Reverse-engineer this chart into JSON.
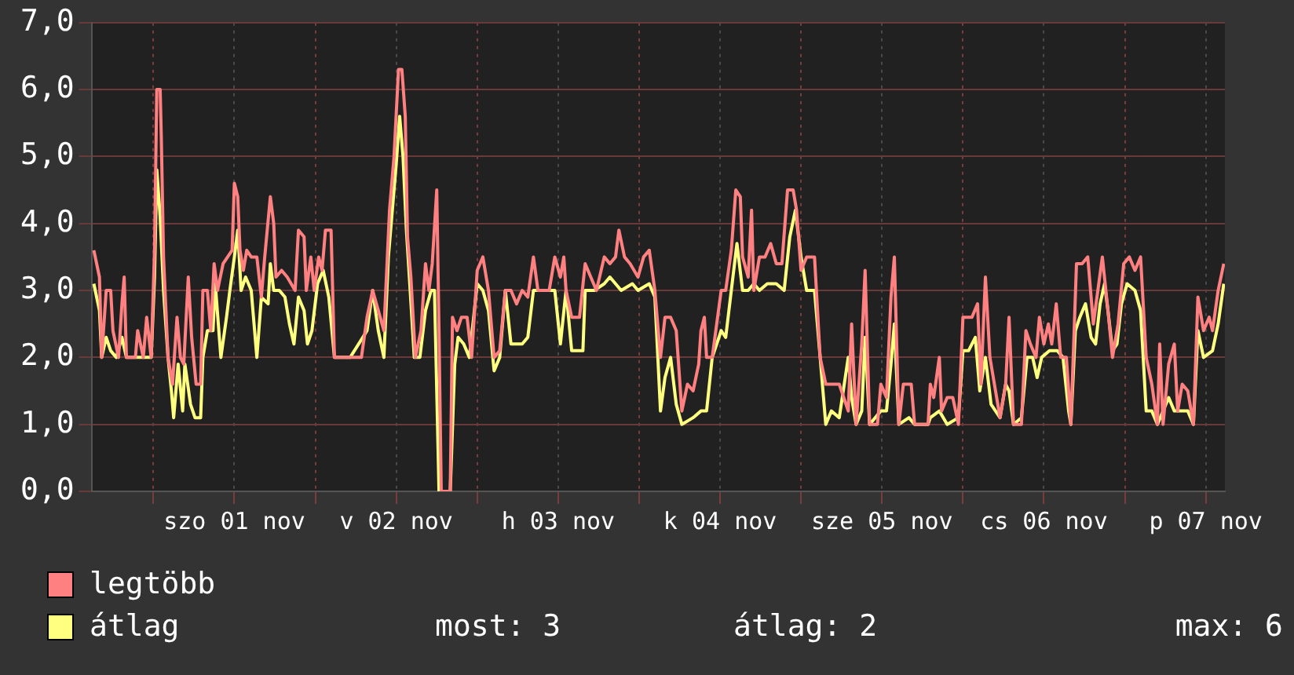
{
  "chart_data": {
    "type": "line",
    "xlim": [
      "--10-31T14:50",
      "--11-07T14:50"
    ],
    "xticks": [
      {
        "value": "--11-01T00:00",
        "label": null
      },
      {
        "value": "--11-01T12:00",
        "label": "szo 01 nov"
      },
      {
        "value": "--11-02T00:00",
        "label": null
      },
      {
        "value": "--11-02T12:00",
        "label": "v 02 nov"
      },
      {
        "value": "--11-03T00:00",
        "label": null
      },
      {
        "value": "--11-03T12:00",
        "label": "h 03 nov"
      },
      {
        "value": "--11-04T00:00",
        "label": null
      },
      {
        "value": "--11-04T12:00",
        "label": "k 04 nov"
      },
      {
        "value": "--11-05T00:00",
        "label": null
      },
      {
        "value": "--11-05T12:00",
        "label": "sze 05 nov"
      },
      {
        "value": "--11-06T00:00",
        "label": null
      },
      {
        "value": "--11-06T12:00",
        "label": "cs 06 nov"
      },
      {
        "value": "--11-07T00:00",
        "label": null
      },
      {
        "value": "--11-07T12:00",
        "label": "p 07 nov"
      }
    ],
    "ylim": [
      0,
      7
    ],
    "yticks": [
      {
        "value": 0,
        "label": "0,0"
      },
      {
        "value": 1,
        "label": "1,0"
      },
      {
        "value": 2,
        "label": "2,0"
      },
      {
        "value": 3,
        "label": "3,0"
      },
      {
        "value": 4,
        "label": "4,0"
      },
      {
        "value": 5,
        "label": "5,0"
      },
      {
        "value": 6,
        "label": "6,0"
      },
      {
        "value": 7,
        "label": "7,0"
      }
    ],
    "grid": true,
    "legend": "bottom left",
    "marker": "none",
    "line_style": "solid",
    "annotations": [
      "most: 3",
      "átlag: 2",
      "max: 6"
    ],
    "series": [
      {
        "name": "legtöbb",
        "color": "#ff8080",
        "x": [
          "--10-31T15:10",
          "--10-31T16:00",
          "--10-31T16:20",
          "--10-31T17:00",
          "--10-31T17:40",
          "--10-31T18:00",
          "--10-31T18:50",
          "--10-31T19:20",
          "--10-31T19:40",
          "--10-31T20:00",
          "--10-31T21:20",
          "--10-31T21:40",
          "--10-31T22:30",
          "--10-31T23:00",
          "--10-31T23:40",
          "--11-01T00:10",
          "--11-01T00:30",
          "--11-01T01:00",
          "--11-01T01:10",
          "--11-01T01:30",
          "--11-01T02:10",
          "--11-01T02:50",
          "--11-01T03:30",
          "--11-01T04:00",
          "--11-01T04:30",
          "--11-01T05:10",
          "--11-01T05:40",
          "--11-01T06:20",
          "--11-01T07:00",
          "--11-01T07:20",
          "--11-01T08:00",
          "--11-01T08:30",
          "--11-01T09:00",
          "--11-01T09:30",
          "--11-01T10:20",
          "--11-01T11:00",
          "--11-01T11:40",
          "--11-01T12:00",
          "--11-01T12:30",
          "--11-01T12:50",
          "--11-01T13:20",
          "--11-01T13:50",
          "--11-01T14:30",
          "--11-01T15:20",
          "--11-01T16:00",
          "--11-01T16:30",
          "--11-01T17:20",
          "--11-01T17:50",
          "--11-01T18:10",
          "--11-01T19:00",
          "--11-01T19:50",
          "--11-01T21:00",
          "--11-01T21:30",
          "--11-01T22:20",
          "--11-01T22:40",
          "--11-01T23:20",
          "--11-01T23:50",
          "--11-02T00:30",
          "--11-02T01:00",
          "--11-02T01:30",
          "--11-02T02:20",
          "--11-02T02:50",
          "--11-02T04:20",
          "--11-02T06:50",
          "--11-02T07:40",
          "--11-02T08:30",
          "--11-02T09:20",
          "--11-02T10:10",
          "--11-02T11:00",
          "--11-02T11:40",
          "--11-02T12:20",
          "--11-02T12:50",
          "--11-02T13:20",
          "--11-02T13:40",
          "--11-02T14:10",
          "--11-02T14:50",
          "--11-02T15:40",
          "--11-02T16:20",
          "--11-02T16:50",
          "--11-02T17:20",
          "--11-02T18:00",
          "--11-02T18:20",
          "--11-02T18:40",
          "--11-02T20:00",
          "--11-02T20:20",
          "--11-02T21:00",
          "--11-02T21:40",
          "--11-02T22:30",
          "--11-02T23:10",
          "--11-03T00:00",
          "--11-03T00:50",
          "--11-03T01:40",
          "--11-03T02:30",
          "--11-03T03:20",
          "--11-03T04:10",
          "--11-03T05:00",
          "--11-03T05:50",
          "--11-03T06:40",
          "--11-03T07:30",
          "--11-03T08:20",
          "--11-03T09:00",
          "--11-03T10:40",
          "--11-03T11:30",
          "--11-03T12:20",
          "--11-03T12:50",
          "--11-03T13:10",
          "--11-03T14:00",
          "--11-03T15:10",
          "--11-03T16:00",
          "--11-03T16:50",
          "--11-03T17:40",
          "--11-03T18:50",
          "--11-03T19:40",
          "--11-03T20:30",
          "--11-03T21:00",
          "--11-03T21:50",
          "--11-03T22:40",
          "--11-03T23:50",
          "--11-04T00:40",
          "--11-04T01:30",
          "--11-04T02:20",
          "--11-04T03:10",
          "--11-04T03:50",
          "--11-04T04:40",
          "--11-04T05:30",
          "--11-04T06:20",
          "--11-04T07:10",
          "--11-04T08:00",
          "--11-04T08:50",
          "--11-04T09:10",
          "--11-04T09:40",
          "--11-04T10:00",
          "--11-04T10:50",
          "--11-04T12:10",
          "--11-04T12:50",
          "--11-04T13:40",
          "--11-04T14:20",
          "--11-04T15:00",
          "--11-04T15:20",
          "--11-04T16:10",
          "--11-04T16:40",
          "--11-04T17:00",
          "--11-04T17:50",
          "--11-04T18:40",
          "--11-04T19:30",
          "--11-04T20:20",
          "--11-04T21:10",
          "--11-04T22:00",
          "--11-04T22:50",
          "--11-04T23:20",
          "--11-05T00:00",
          "--11-05T00:50",
          "--11-05T02:00",
          "--11-05T02:50",
          "--11-05T03:40",
          "--11-05T04:30",
          "--11-05T05:40",
          "--11-05T07:00",
          "--11-05T07:30",
          "--11-05T08:10",
          "--11-05T09:00",
          "--11-05T09:30",
          "--11-05T10:10",
          "--11-05T11:20",
          "--11-05T11:50",
          "--11-05T12:40",
          "--11-05T13:20",
          "--11-05T13:50",
          "--11-05T14:30",
          "--11-05T15:10",
          "--11-05T16:20",
          "--11-05T16:50",
          "--11-05T18:50",
          "--11-05T19:10",
          "--11-05T19:40",
          "--11-05T20:30",
          "--11-05T20:50",
          "--11-05T21:40",
          "--11-05T22:30",
          "--11-05T23:20",
          "--11-06T00:00",
          "--11-06T00:30",
          "--11-06T01:20",
          "--11-06T02:10",
          "--11-06T02:40",
          "--11-06T03:20",
          "--11-06T04:00",
          "--11-06T04:40",
          "--11-06T05:30",
          "--11-06T06:20",
          "--11-06T06:50",
          "--11-06T07:30",
          "--11-06T08:40",
          "--11-06T09:20",
          "--11-06T10:00",
          "--11-06T10:50",
          "--11-06T11:20",
          "--11-06T12:00",
          "--11-06T12:40",
          "--11-06T13:10",
          "--11-06T13:50",
          "--11-06T14:30",
          "--11-06T15:20",
          "--11-06T16:00",
          "--11-06T16:50",
          "--11-06T17:40",
          "--11-06T18:30",
          "--11-06T19:20",
          "--11-06T20:00",
          "--11-06T20:40",
          "--11-06T21:30",
          "--11-06T22:10",
          "--11-06T23:00",
          "--11-06T23:50",
          "--11-07T00:40",
          "--11-07T01:30",
          "--11-07T02:20",
          "--11-07T03:10",
          "--11-07T04:00",
          "--11-07T04:50",
          "--11-07T05:10",
          "--11-07T05:40",
          "--11-07T06:30",
          "--11-07T07:20",
          "--11-07T07:50",
          "--11-07T08:30",
          "--11-07T09:20",
          "--11-07T10:10",
          "--11-07T10:50",
          "--11-07T11:40",
          "--11-07T12:30",
          "--11-07T13:00",
          "--11-07T13:50",
          "--11-07T14:40"
        ],
        "values": [
          3.6,
          3.2,
          2.0,
          3.0,
          3.0,
          2.4,
          2.0,
          2.8,
          3.2,
          2.0,
          2.0,
          2.4,
          2.0,
          2.6,
          2.0,
          3.6,
          6.0,
          6.0,
          5.3,
          3.5,
          2.0,
          1.6,
          2.6,
          2.0,
          1.9,
          3.2,
          2.3,
          1.6,
          1.6,
          3.0,
          3.0,
          2.4,
          3.4,
          3.0,
          3.4,
          3.5,
          3.6,
          4.6,
          4.4,
          3.6,
          3.3,
          3.6,
          3.5,
          3.5,
          2.9,
          3.5,
          4.4,
          4.0,
          3.2,
          3.3,
          3.2,
          3.0,
          3.9,
          3.8,
          3.0,
          3.5,
          3.0,
          3.5,
          3.3,
          3.9,
          3.9,
          2.0,
          2.0,
          2.0,
          2.6,
          3.0,
          2.7,
          2.4,
          4.2,
          5.0,
          6.3,
          6.3,
          5.6,
          3.8,
          3.2,
          2.0,
          2.4,
          3.4,
          3.0,
          3.4,
          4.5,
          2.4,
          0.0,
          0.0,
          2.6,
          2.4,
          2.6,
          2.6,
          2.0,
          3.3,
          3.5,
          3.0,
          2.0,
          2.1,
          3.0,
          3.0,
          2.8,
          3.0,
          2.9,
          3.5,
          3.0,
          3.0,
          3.5,
          3.2,
          3.5,
          3.0,
          2.6,
          2.6,
          3.4,
          3.2,
          3.0,
          3.5,
          3.4,
          3.5,
          3.9,
          3.5,
          3.4,
          3.2,
          3.5,
          3.6,
          3.0,
          2.0,
          2.6,
          2.6,
          2.4,
          1.2,
          1.6,
          1.5,
          1.9,
          2.4,
          2.6,
          2.0,
          2.0,
          3.0,
          3.0,
          3.6,
          4.5,
          4.4,
          3.5,
          3.2,
          4.2,
          3.0,
          3.5,
          3.5,
          3.7,
          3.4,
          3.4,
          4.5,
          4.5,
          4.2,
          3.3,
          3.5,
          3.5,
          2.0,
          1.6,
          1.6,
          1.6,
          1.2,
          2.5,
          1.0,
          2.2,
          3.3,
          1.0,
          1.0,
          1.6,
          1.4,
          2.9,
          3.5,
          1.0,
          1.6,
          1.6,
          1.0,
          1.0,
          1.6,
          1.4,
          2.0,
          1.2,
          1.4,
          1.4,
          1.0,
          2.6,
          2.6,
          2.6,
          2.8,
          1.6,
          3.2,
          2.0,
          1.6,
          1.1,
          1.6,
          2.6,
          1.0,
          1.0,
          2.4,
          2.2,
          2.0,
          2.6,
          2.2,
          2.5,
          2.2,
          2.8,
          2.0,
          2.0,
          1.0,
          3.4,
          3.4,
          3.5,
          2.5,
          3.0,
          3.5,
          2.7,
          2.0,
          2.5,
          3.4,
          3.5,
          3.3,
          3.5,
          2.0,
          1.6,
          1.0,
          2.2,
          1.0,
          1.9,
          2.2,
          1.2,
          1.6,
          1.5,
          1.0,
          2.9,
          2.4,
          2.6,
          2.4,
          3.0,
          3.4
        ]
      },
      {
        "name": "átlag",
        "color": "#ffff80",
        "x": [
          "--10-31T15:10",
          "--10-31T16:00",
          "--10-31T16:20",
          "--10-31T17:00",
          "--10-31T17:40",
          "--10-31T18:30",
          "--10-31T19:20",
          "--10-31T20:00",
          "--10-31T22:10",
          "--10-31T23:40",
          "--11-01T00:10",
          "--11-01T00:30",
          "--11-01T01:00",
          "--11-01T01:30",
          "--11-01T02:10",
          "--11-01T02:40",
          "--11-01T03:00",
          "--11-01T03:40",
          "--11-01T04:20",
          "--11-01T04:40",
          "--11-01T05:30",
          "--11-01T06:10",
          "--11-01T07:00",
          "--11-01T07:20",
          "--11-01T08:00",
          "--11-01T08:50",
          "--11-01T09:10",
          "--11-01T10:00",
          "--11-01T10:50",
          "--11-01T11:20",
          "--11-01T12:00",
          "--11-01T12:30",
          "--11-01T13:00",
          "--11-01T13:40",
          "--11-01T14:30",
          "--11-01T15:20",
          "--11-01T16:00",
          "--11-01T17:00",
          "--11-01T17:20",
          "--11-01T17:50",
          "--11-01T18:40",
          "--11-01T19:30",
          "--11-01T20:10",
          "--11-01T20:50",
          "--11-01T21:30",
          "--11-01T22:20",
          "--11-01T22:50",
          "--11-01T23:30",
          "--11-02T00:20",
          "--11-02T01:10",
          "--11-02T02:00",
          "--11-02T02:50",
          "--11-02T05:10",
          "--11-02T07:40",
          "--11-02T08:30",
          "--11-02T09:20",
          "--11-02T10:10",
          "--11-02T10:50",
          "--11-02T11:20",
          "--11-02T12:00",
          "--11-02T12:30",
          "--11-02T13:00",
          "--11-02T13:30",
          "--11-02T14:00",
          "--11-02T14:40",
          "--11-02T15:30",
          "--11-02T16:20",
          "--11-02T17:10",
          "--11-02T17:40",
          "--11-02T18:20",
          "--11-02T20:00",
          "--11-02T20:40",
          "--11-02T21:10",
          "--11-02T22:00",
          "--11-02T22:50",
          "--11-03T00:00",
          "--11-03T00:50",
          "--11-03T01:40",
          "--11-03T02:30",
          "--11-03T03:20",
          "--11-03T04:10",
          "--11-03T05:00",
          "--11-03T06:40",
          "--11-03T07:30",
          "--11-03T08:20",
          "--11-03T10:40",
          "--11-03T11:30",
          "--11-03T12:20",
          "--11-03T13:10",
          "--11-03T14:00",
          "--11-03T15:40",
          "--11-03T16:00",
          "--11-03T17:20",
          "--11-03T18:50",
          "--11-03T19:40",
          "--11-03T20:30",
          "--11-03T21:20",
          "--11-03T23:00",
          "--11-03T23:50",
          "--11-04T01:30",
          "--11-04T02:20",
          "--11-04T03:10",
          "--11-04T03:50",
          "--11-04T04:40",
          "--11-04T05:30",
          "--11-04T06:20",
          "--11-04T08:00",
          "--11-04T09:10",
          "--11-04T10:00",
          "--11-04T10:50",
          "--11-04T12:10",
          "--11-04T12:50",
          "--11-04T13:40",
          "--11-04T14:30",
          "--11-04T15:20",
          "--11-04T16:10",
          "--11-04T17:00",
          "--11-04T17:50",
          "--11-04T19:00",
          "--11-04T20:20",
          "--11-04T21:30",
          "--11-04T22:20",
          "--11-04T23:10",
          "--11-05T00:00",
          "--11-05T00:50",
          "--11-05T02:00",
          "--11-05T02:50",
          "--11-05T03:40",
          "--11-05T04:30",
          "--11-05T05:40",
          "--11-05T07:00",
          "--11-05T07:30",
          "--11-05T08:10",
          "--11-05T09:00",
          "--11-05T09:30",
          "--11-05T10:10",
          "--11-05T11:50",
          "--11-05T12:40",
          "--11-05T13:20",
          "--11-05T13:50",
          "--11-05T14:30",
          "--11-05T16:00",
          "--11-05T16:50",
          "--11-05T18:50",
          "--11-05T19:10",
          "--11-05T20:30",
          "--11-05T21:40",
          "--11-05T23:20",
          "--11-06T00:00",
          "--11-06T00:50",
          "--11-06T01:50",
          "--11-06T02:30",
          "--11-06T03:20",
          "--11-06T04:10",
          "--11-06T05:30",
          "--11-06T06:20",
          "--11-06T06:50",
          "--11-06T07:30",
          "--11-06T08:40",
          "--11-06T09:30",
          "--11-06T10:20",
          "--11-06T11:00",
          "--11-06T11:40",
          "--11-06T12:50",
          "--11-06T14:00",
          "--11-06T14:50",
          "--11-06T15:40",
          "--11-06T16:00",
          "--11-06T16:40",
          "--11-06T17:20",
          "--11-06T18:10",
          "--11-06T19:00",
          "--11-06T19:40",
          "--11-06T20:20",
          "--11-06T21:00",
          "--11-06T21:30",
          "--11-06T22:10",
          "--11-06T22:50",
          "--11-06T23:30",
          "--11-07T00:20",
          "--11-07T01:30",
          "--11-07T02:20",
          "--11-07T03:10",
          "--11-07T04:00",
          "--11-07T04:50",
          "--11-07T05:40",
          "--11-07T06:30",
          "--11-07T07:20",
          "--11-07T08:00",
          "--11-07T09:20",
          "--11-07T10:10",
          "--11-07T10:50",
          "--11-07T11:40",
          "--11-07T13:00",
          "--11-07T13:50",
          "--11-07T14:40"
        ],
        "values": [
          3.1,
          2.7,
          2.0,
          2.3,
          2.1,
          2.0,
          2.3,
          2.0,
          2.0,
          2.0,
          3.2,
          4.8,
          4.1,
          3.0,
          2.0,
          1.5,
          1.1,
          1.9,
          1.2,
          1.9,
          1.3,
          1.1,
          1.1,
          2.0,
          2.4,
          2.4,
          3.1,
          2.0,
          2.6,
          3.0,
          3.5,
          3.9,
          3.0,
          3.2,
          3.0,
          2.0,
          2.9,
          2.8,
          3.4,
          3.0,
          3.0,
          2.9,
          2.5,
          2.2,
          2.9,
          2.7,
          2.2,
          2.4,
          3.1,
          3.3,
          2.9,
          2.0,
          2.0,
          2.4,
          3.0,
          2.4,
          2.0,
          3.5,
          4.1,
          4.9,
          5.6,
          5.0,
          3.9,
          3.1,
          2.0,
          2.0,
          2.7,
          3.0,
          3.0,
          0.0,
          0.0,
          1.9,
          2.3,
          2.2,
          2.0,
          3.1,
          3.0,
          2.7,
          1.8,
          2.0,
          3.0,
          2.2,
          2.2,
          2.3,
          3.0,
          3.0,
          3.0,
          2.2,
          3.0,
          2.1,
          2.1,
          3.0,
          3.0,
          3.1,
          3.2,
          3.1,
          3.0,
          3.1,
          3.0,
          3.1,
          2.9,
          1.2,
          1.7,
          2.0,
          1.3,
          1.0,
          1.1,
          1.2,
          1.2,
          2.0,
          2.4,
          2.3,
          3.0,
          3.7,
          3.0,
          3.0,
          3.1,
          3.0,
          3.1,
          3.1,
          3.0,
          3.8,
          4.2,
          3.5,
          3.0,
          3.0,
          2.0,
          1.0,
          1.2,
          1.1,
          2.0,
          1.4,
          1.0,
          1.2,
          2.3,
          1.0,
          1.2,
          1.2,
          1.9,
          2.5,
          1.0,
          1.1,
          1.0,
          1.0,
          1.1,
          1.2,
          1.0,
          1.1,
          2.1,
          2.1,
          2.3,
          1.5,
          2.0,
          1.3,
          1.1,
          1.6,
          1.5,
          1.0,
          1.1,
          2.0,
          2.0,
          1.7,
          2.0,
          2.1,
          2.1,
          2.0,
          1.2,
          1.0,
          2.4,
          2.6,
          2.8,
          2.3,
          2.2,
          2.8,
          3.1,
          2.7,
          2.1,
          2.2,
          2.8,
          3.1,
          3.0,
          2.7,
          1.2,
          1.2,
          1.0,
          1.2,
          1.4,
          1.2,
          1.2,
          1.2,
          1.0,
          2.4,
          2.0,
          2.1,
          2.5,
          3.1
        ]
      }
    ]
  }
}
